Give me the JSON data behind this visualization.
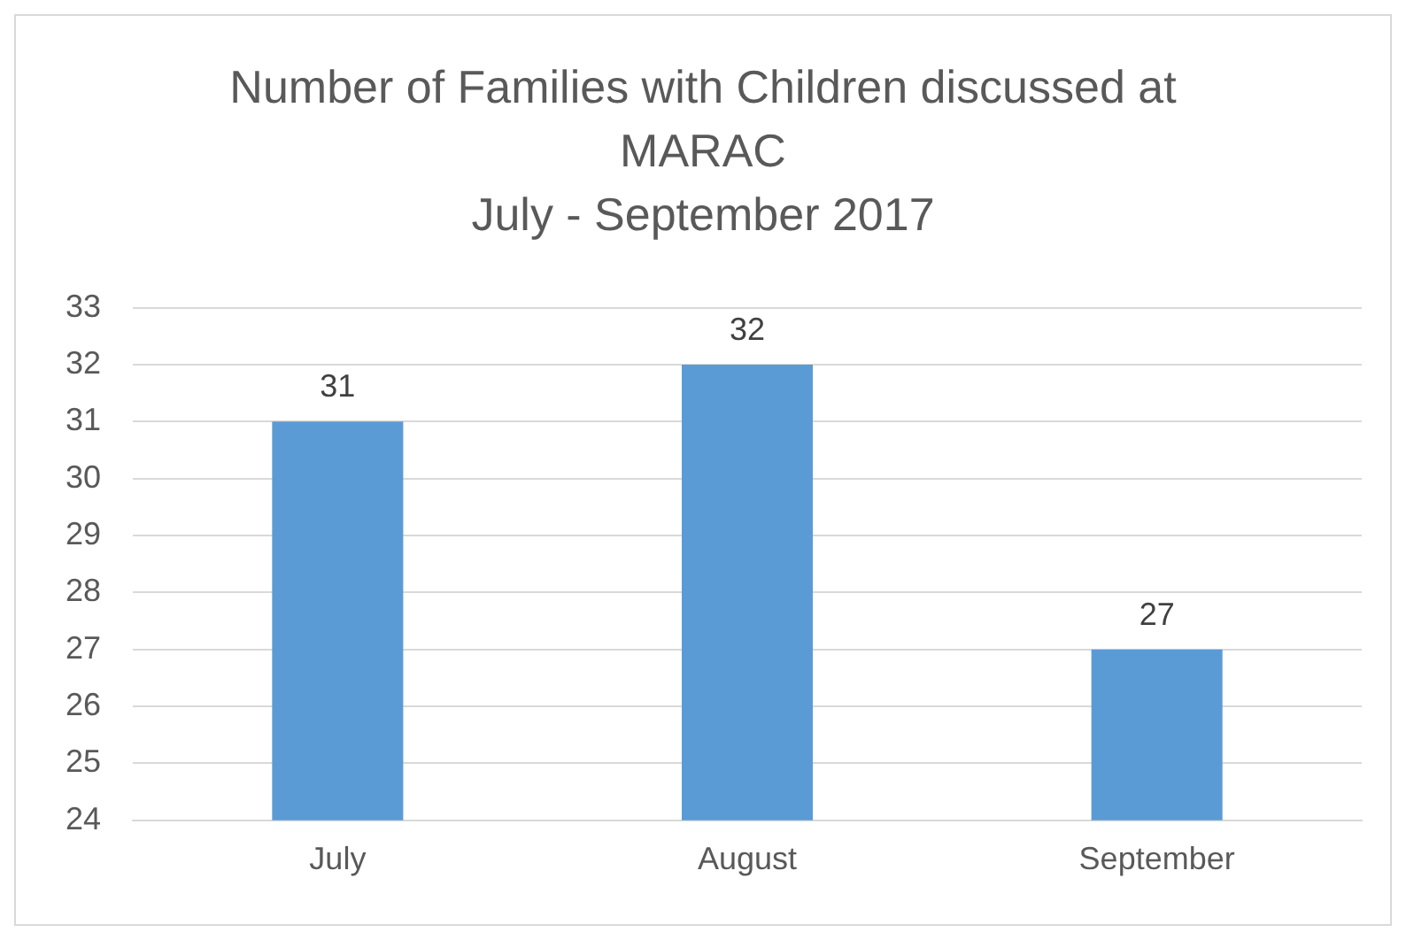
{
  "chart_data": {
    "type": "bar",
    "title": "Number of Families with Children discussed at MARAC",
    "subtitle": "July - September 2017",
    "categories": [
      "July",
      "August",
      "September"
    ],
    "values": [
      31,
      32,
      27
    ],
    "color": "#5b9bd5",
    "ylim": [
      24,
      33
    ],
    "yticks": [
      24,
      25,
      26,
      27,
      28,
      29,
      30,
      31,
      32,
      33
    ],
    "grid": "y",
    "data_labels": true
  }
}
